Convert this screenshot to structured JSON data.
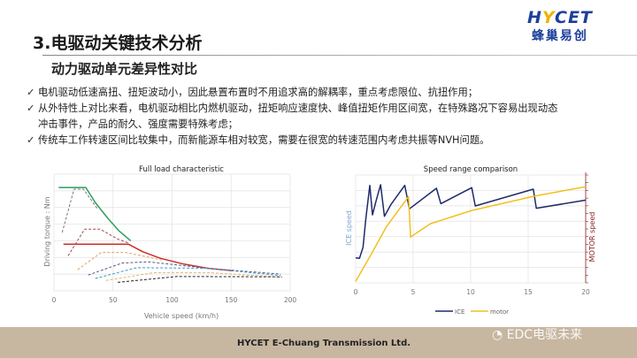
{
  "slide": {
    "title": "3.电驱动关键技术分析",
    "subtitle": "动力驱动单元差异性对比",
    "bullets": [
      {
        "check": "✓",
        "text": "电机驱动低速高扭、扭矩波动小，因此悬置布置时不用追求高的解耦率，重点考虑限位、抗扭作用；"
      },
      {
        "check": "✓",
        "text": "从外特性上对比来看，电机驱动相比内燃机驱动，扭矩响应速度快、峰值扭矩作用区间宽，在特殊路况下容易出现动态"
      },
      {
        "check": "",
        "text": "冲击事件，产品的耐久、强度需要特殊考虑；"
      },
      {
        "check": "✓",
        "text": "传统车工作转速区间比较集中，而新能源车相对较宽，需要在很宽的转速范围内考虑共振等NVH问题。"
      }
    ],
    "logo": {
      "en_pre": "H",
      "en_mark": "Y",
      "en_post": "CET",
      "cn": "蜂巢易创"
    },
    "footer": "HYCET E-Chuang Transmission Ltd.",
    "watermark": "EDC电驱未来"
  },
  "chart_data": [
    {
      "type": "line",
      "title": "Full load characteristic",
      "xlabel": "Vehicle speed (km/h)",
      "ylabel": "Driving torque : Nm",
      "xlim": [
        0,
        200
      ],
      "xticks": [
        0,
        50,
        100,
        150,
        200
      ],
      "ylim": [
        0,
        7
      ],
      "ytick_labels": false,
      "grid": true,
      "series": [
        {
          "color": "#2e9e5e",
          "style": "solid",
          "points": [
            [
              4,
              6.2
            ],
            [
              27,
              6.2
            ],
            [
              35,
              5.3
            ],
            [
              45,
              4.4
            ],
            [
              55,
              3.6
            ],
            [
              65,
              3.0
            ]
          ]
        },
        {
          "color": "#c8302a",
          "style": "solid",
          "points": [
            [
              8,
              2.8
            ],
            [
              63,
              2.8
            ],
            [
              75,
              2.35
            ],
            [
              90,
              1.95
            ],
            [
              110,
              1.6
            ],
            [
              130,
              1.35
            ],
            [
              152,
              1.2
            ]
          ]
        },
        {
          "color": "#777",
          "style": "dashed",
          "points": [
            [
              7,
              3.5
            ],
            [
              17,
              6.1
            ],
            [
              25,
              6.1
            ],
            [
              37,
              4.9
            ]
          ]
        },
        {
          "color": "#a04848",
          "style": "dashed",
          "points": [
            [
              12,
              2.1
            ],
            [
              26,
              3.7
            ],
            [
              39,
              3.7
            ],
            [
              54,
              3.1
            ],
            [
              64,
              2.85
            ]
          ]
        },
        {
          "color": "#e0a060",
          "style": "dashed",
          "points": [
            [
              20,
              1.26
            ],
            [
              40,
              2.3
            ],
            [
              61,
              2.3
            ],
            [
              91,
              1.85
            ]
          ]
        },
        {
          "color": "#555a80",
          "style": "dashed",
          "points": [
            [
              29,
              0.95
            ],
            [
              58,
              1.67
            ],
            [
              80,
              1.74
            ],
            [
              130,
              1.35
            ],
            [
              192,
              1.0
            ]
          ]
        },
        {
          "color": "#3a9ac8",
          "style": "dashed",
          "points": [
            [
              35,
              0.74
            ],
            [
              70,
              1.39
            ],
            [
              130,
              1.35
            ],
            [
              192,
              0.91
            ]
          ]
        },
        {
          "color": "#e8b070",
          "style": "dashed",
          "points": [
            [
              44,
              0.62
            ],
            [
              85,
              1.09
            ],
            [
              130,
              1.09
            ],
            [
              192,
              0.82
            ]
          ]
        },
        {
          "color": "#222",
          "style": "dashed",
          "points": [
            [
              54,
              0.51
            ],
            [
              104,
              0.86
            ],
            [
              193,
              0.84
            ]
          ]
        }
      ]
    },
    {
      "type": "line",
      "title": "Speed range comparison",
      "xlim": [
        0,
        20
      ],
      "xticks": [
        0,
        5,
        10,
        15,
        20
      ],
      "ylim": [
        0,
        7
      ],
      "ytick_labels": false,
      "grid": true,
      "ylabel_left": "ICE speed",
      "ylabel_right": "MOTOR speed",
      "legend": "bottom",
      "series": [
        {
          "name": "ICE",
          "color": "#1f2a6b",
          "points": [
            [
              0,
              1.63
            ],
            [
              0.33,
              1.59
            ],
            [
              0.64,
              2.3
            ],
            [
              0.89,
              4.22
            ],
            [
              1.23,
              6.33
            ],
            [
              1.46,
              4.41
            ],
            [
              1.79,
              5.37
            ],
            [
              2.17,
              6.37
            ],
            [
              2.5,
              4.32
            ],
            [
              3.07,
              5.09
            ],
            [
              4.27,
              6.33
            ],
            [
              4.47,
              5.57
            ],
            [
              4.67,
              4.8
            ],
            [
              7.02,
              6.14
            ],
            [
              7.41,
              5.14
            ],
            [
              10.09,
              6.18
            ],
            [
              10.4,
              4.99
            ],
            [
              15.45,
              6.08
            ],
            [
              15.71,
              4.84
            ],
            [
              20,
              5.37
            ]
          ]
        },
        {
          "name": "motor",
          "color": "#f0c020",
          "points": [
            [
              0,
              0.1
            ],
            [
              1.4,
              1.92
            ],
            [
              2.68,
              3.65
            ],
            [
              4.47,
              5.47
            ],
            [
              4.6,
              5.6
            ],
            [
              4.78,
              2.98
            ],
            [
              6.5,
              3.84
            ],
            [
              10.09,
              4.7
            ],
            [
              15.45,
              5.62
            ],
            [
              20,
              6.24
            ]
          ]
        }
      ]
    }
  ]
}
